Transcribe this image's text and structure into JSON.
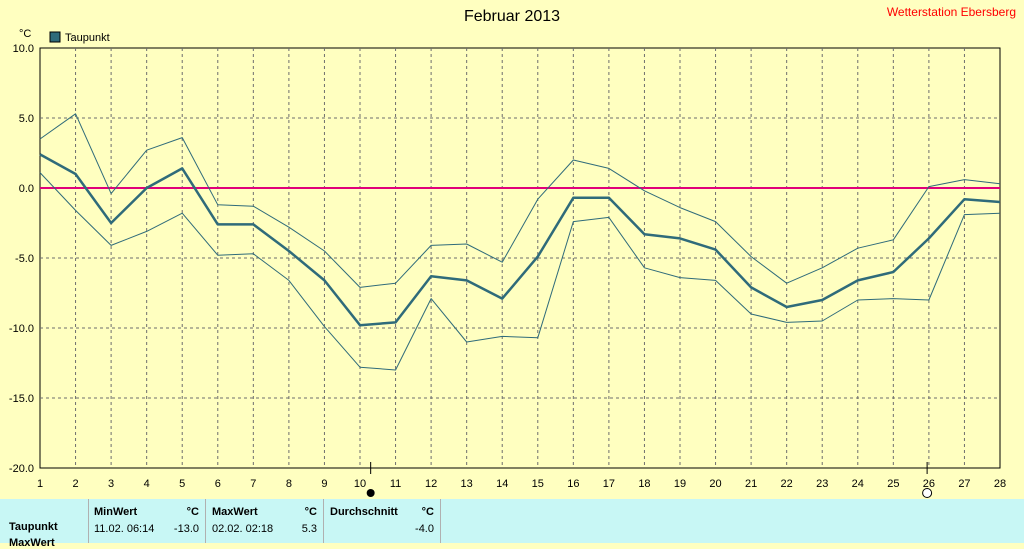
{
  "chart_data": {
    "type": "line",
    "title": "Februar 2013",
    "station": "Wetterstation Ebersberg",
    "unit": "°C",
    "ylim": [
      -20,
      10
    ],
    "yticks": [
      "10.0",
      "5.0",
      "0.0",
      "-5.0",
      "-10.0",
      "-15.0",
      "-20.0"
    ],
    "x": [
      "1",
      "2",
      "3",
      "4",
      "5",
      "6",
      "7",
      "8",
      "9",
      "10",
      "11",
      "12",
      "13",
      "14",
      "15",
      "16",
      "17",
      "18",
      "19",
      "20",
      "21",
      "22",
      "23",
      "24",
      "25",
      "26",
      "27",
      "28"
    ],
    "grid": true,
    "legend_position": "top-left",
    "series": [
      {
        "name": "Taupunkt",
        "role": "mean",
        "color": "#2f6b7a",
        "values": [
          2.4,
          1.0,
          -2.5,
          0.0,
          1.4,
          -2.6,
          -2.6,
          -4.5,
          -6.6,
          -9.8,
          -9.6,
          -6.3,
          -6.6,
          -7.9,
          -4.9,
          -0.7,
          -0.7,
          -3.3,
          -3.6,
          -4.4,
          -7.1,
          -8.5,
          -8.0,
          -6.6,
          -6.0,
          -3.6,
          -0.8,
          -1.0
        ]
      },
      {
        "role": "max",
        "color": "#2f6b7a",
        "values": [
          3.5,
          5.3,
          -0.4,
          2.7,
          3.6,
          -1.2,
          -1.3,
          -2.8,
          -4.5,
          -7.1,
          -6.8,
          -4.1,
          -4.0,
          -5.3,
          -0.8,
          2.0,
          1.4,
          -0.2,
          -1.4,
          -2.4,
          -4.9,
          -6.8,
          -5.7,
          -4.3,
          -3.7,
          0.1,
          0.6,
          0.3
        ]
      },
      {
        "role": "min",
        "color": "#2f6b7a",
        "values": [
          1.1,
          -1.6,
          -4.1,
          -3.1,
          -1.8,
          -4.8,
          -4.7,
          -6.6,
          -9.9,
          -12.8,
          -13.0,
          -7.9,
          -11.0,
          -10.6,
          -10.7,
          -2.4,
          -2.1,
          -5.7,
          -6.4,
          -6.6,
          -9.0,
          -9.6,
          -9.5,
          -8.0,
          -7.9,
          -8.0,
          -1.9,
          -1.8
        ]
      }
    ],
    "reference_line": {
      "y": 0,
      "color": "#e0007a"
    },
    "markers": [
      {
        "x": 10.3,
        "kind": "filled-circle"
      },
      {
        "x": 25.95,
        "kind": "open-circle"
      }
    ]
  },
  "stats": {
    "row_label": "Taupunkt",
    "row_label_2": "MaxWert",
    "min_header": "MinWert",
    "max_header": "MaxWert",
    "avg_header": "Durchschnitt",
    "unit": "°C",
    "min_time": "11.02.  06:14",
    "min_value": "-13.0",
    "max_time": "02.02.  02:18",
    "max_value": "5.3",
    "avg_value": "-4.0"
  }
}
